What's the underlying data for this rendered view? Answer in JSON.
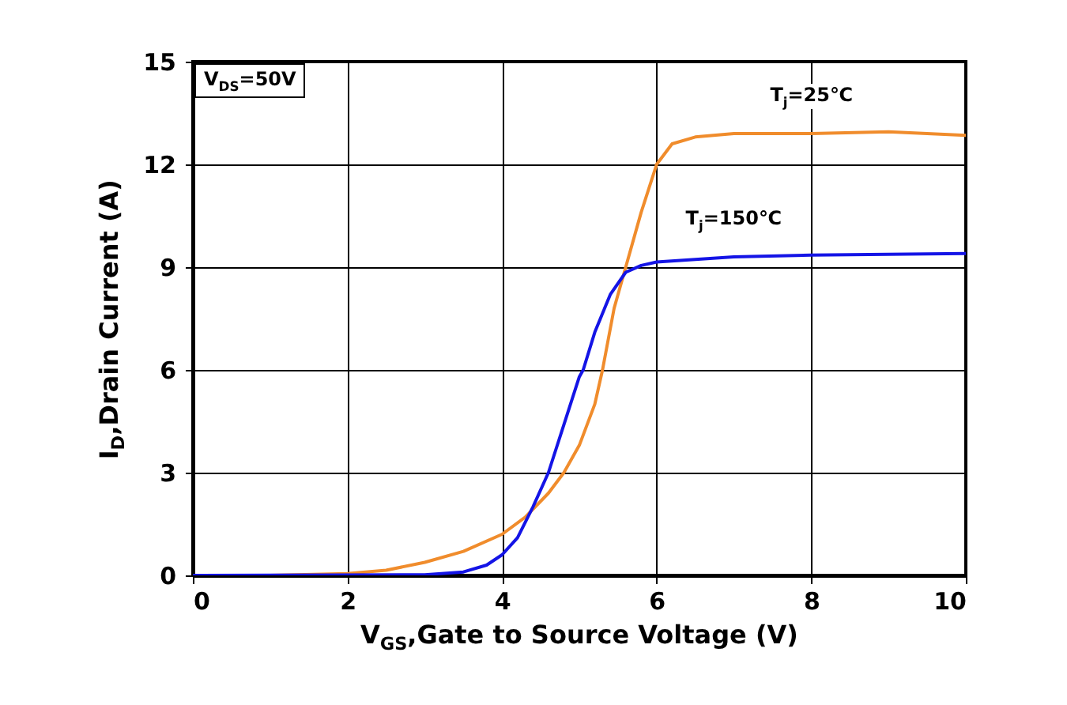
{
  "chart_data": {
    "type": "line",
    "xlabel": "V$_{GS}$,Gate to Source Voltage (V)",
    "ylabel": "I$_{D}$,Drain Current (A)",
    "xlim": [
      0,
      10
    ],
    "xticks": [
      0,
      2,
      4,
      6,
      8,
      10
    ],
    "ylim": [
      0,
      15
    ],
    "yticks": [
      0,
      3,
      6,
      9,
      12,
      15
    ],
    "grid": true,
    "line_style": "solid",
    "annotations": [
      "V$_{DS}$=50V"
    ],
    "series": [
      {
        "name": "T$_{j}$=25℃",
        "color": "#f08c2c",
        "x": [
          0,
          1,
          2,
          2.5,
          3,
          3.5,
          4,
          4.3,
          4.6,
          4.8,
          5.0,
          5.2,
          5.3,
          5.45,
          5.6,
          5.8,
          6.0,
          6.2,
          6.5,
          7,
          8,
          9,
          10
        ],
        "values": [
          0,
          0,
          0.05,
          0.15,
          0.38,
          0.7,
          1.2,
          1.7,
          2.4,
          3.0,
          3.8,
          5.0,
          6.0,
          7.8,
          9.0,
          10.6,
          12.0,
          12.6,
          12.8,
          12.9,
          12.9,
          12.95,
          12.85
        ]
      },
      {
        "name": "T$_{j}$=150℃",
        "color": "#1414e6",
        "x": [
          0,
          3,
          3.5,
          3.8,
          4,
          4.2,
          4.4,
          4.6,
          4.8,
          5.0,
          5.05,
          5.2,
          5.4,
          5.6,
          5.8,
          6,
          7,
          8,
          10
        ],
        "values": [
          0,
          0.02,
          0.1,
          0.3,
          0.6,
          1.1,
          2.0,
          3.0,
          4.4,
          5.8,
          6.0,
          7.1,
          8.2,
          8.85,
          9.05,
          9.15,
          9.3,
          9.35,
          9.4
        ]
      }
    ]
  }
}
